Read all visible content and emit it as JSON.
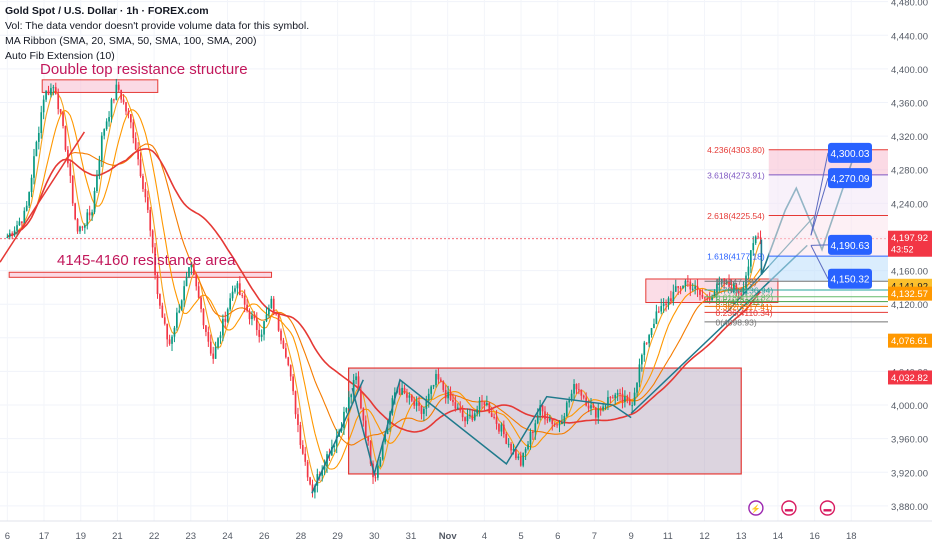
{
  "header": {
    "title": "Gold Spot / U.S. Dollar · 1h · FOREX.com",
    "vol_note": "Vol: The data vendor doesn't provide volume data for this symbol.",
    "ma_ribbon": "MA Ribbon (SMA, 20, SMA, 50, SMA, 100, SMA, 200)",
    "auto_fib": "Auto Fib Extension (10)"
  },
  "colors": {
    "candle_up": "#089981",
    "candle_down": "#f23645",
    "ma20": "#f7a21b",
    "ma50": "#ff9800",
    "ma100": "#f57c00",
    "ma200": "#e53935",
    "box_fill": "#b2a0b8",
    "projection": "#1f7a8c",
    "label_blue": "#2962ff",
    "price_red": "#f23645",
    "price_orange": "#ff9800",
    "price_yellow": "#fbc02d"
  },
  "chart_data": {
    "type": "candlestick",
    "symbol": "Gold Spot / U.S. Dollar",
    "interval": "1h",
    "source": "FOREX.com",
    "y_axis": {
      "range": [
        3862,
        4482
      ],
      "ticks": [
        4480,
        4440,
        4400,
        4360,
        4320,
        4280,
        4240,
        4200,
        4160,
        4120,
        4080,
        4040,
        4000,
        3960,
        3920,
        3880
      ],
      "tick_labels": [
        "4,480.00",
        "4,440.00",
        "4,400.00",
        "4,360.00",
        "4,320.00",
        "4,280.00",
        "4,240.00",
        "4,200.00",
        "4,160.00",
        "4,120.00",
        "4,080.00",
        "4,040.00",
        "4,000.00",
        "3,960.00",
        "3,920.00",
        "3,880.00"
      ]
    },
    "x_axis": {
      "tick_labels": [
        "6",
        "17",
        "19",
        "21",
        "22",
        "23",
        "24",
        "26",
        "28",
        "29",
        "30",
        "31",
        "Nov",
        "4",
        "5",
        "6",
        "7",
        "9",
        "11",
        "12",
        "13",
        "14",
        "16",
        "18"
      ],
      "visible_range": [
        -0.2,
        24
      ]
    },
    "price_path": [
      [
        0.0,
        4200
      ],
      [
        0.5,
        4228
      ],
      [
        1.0,
        4370
      ],
      [
        1.3,
        4380
      ],
      [
        1.6,
        4305
      ],
      [
        1.9,
        4205
      ],
      [
        2.3,
        4230
      ],
      [
        2.6,
        4325
      ],
      [
        3.0,
        4380
      ],
      [
        3.4,
        4330
      ],
      [
        3.8,
        4240
      ],
      [
        4.1,
        4130
      ],
      [
        4.4,
        4070
      ],
      [
        4.7,
        4120
      ],
      [
        5.0,
        4165
      ],
      [
        5.3,
        4110
      ],
      [
        5.6,
        4055
      ],
      [
        5.9,
        4100
      ],
      [
        6.2,
        4145
      ],
      [
        6.5,
        4115
      ],
      [
        6.9,
        4085
      ],
      [
        7.2,
        4122
      ],
      [
        7.6,
        4062
      ],
      [
        8.0,
        3955
      ],
      [
        8.3,
        3898
      ],
      [
        8.6,
        3930
      ],
      [
        9.0,
        3965
      ],
      [
        9.5,
        4032
      ],
      [
        10.0,
        3912
      ],
      [
        10.6,
        4022
      ],
      [
        11.3,
        3990
      ],
      [
        11.7,
        4032
      ],
      [
        12.0,
        4010
      ],
      [
        12.5,
        3980
      ],
      [
        13.0,
        4005
      ],
      [
        13.6,
        3960
      ],
      [
        14.0,
        3930
      ],
      [
        14.5,
        3995
      ],
      [
        15.0,
        3975
      ],
      [
        15.5,
        4025
      ],
      [
        16.0,
        3990
      ],
      [
        16.5,
        4012
      ],
      [
        17.0,
        4000
      ],
      [
        17.3,
        4060
      ],
      [
        17.6,
        4100
      ],
      [
        18.0,
        4125
      ],
      [
        18.5,
        4148
      ],
      [
        19.0,
        4125
      ],
      [
        19.5,
        4145
      ],
      [
        20.0,
        4135
      ],
      [
        20.4,
        4200
      ],
      [
        20.55,
        4197.92
      ]
    ],
    "moving_averages": [
      {
        "name": "SMA 20",
        "period": 20
      },
      {
        "name": "SMA 50",
        "period": 50
      },
      {
        "name": "SMA 100",
        "period": 100
      },
      {
        "name": "SMA 200",
        "period": 200
      }
    ],
    "annotations": {
      "double_top": {
        "label": "Double top resistance structure",
        "x1": 0.95,
        "x2": 4.1,
        "y1": 4372,
        "y2": 4387
      },
      "resistance_area": {
        "label": "4145-4160 resistance area",
        "x1": 0.05,
        "x2": 7.2,
        "y1": 4152,
        "y2": 4158
      },
      "range_box": {
        "x1": 9.3,
        "x2": 20.0,
        "y1": 3918,
        "y2": 4044
      },
      "consolidation_box": {
        "x1": 17.4,
        "x2": 21.0,
        "y1": 4122,
        "y2": 4150
      },
      "fib_levels": [
        {
          "ratio": "4.236",
          "price": 4303.8,
          "label": "4.236(4303.80)"
        },
        {
          "ratio": "3.618",
          "price": 4273.91,
          "label": "3.618(4273.91)"
        },
        {
          "ratio": "2.618",
          "price": 4225.54,
          "label": "2.618(4225.54)"
        },
        {
          "ratio": "1.618",
          "price": 4177.18,
          "label": "1.618(4177.18)"
        },
        {
          "ratio": "1",
          "price": 4147.29,
          "label": "1(4147.29)"
        },
        {
          "ratio": "0.786",
          "price": 4136.94,
          "label": "0.786(4136.94)"
        },
        {
          "ratio": "0.618",
          "price": 4128.82,
          "label": "0.618(4128.82)"
        },
        {
          "ratio": "0.5",
          "price": 4123.11,
          "label": "0.5(4123.11)"
        },
        {
          "ratio": "0.382",
          "price": 4117.41,
          "label": "0.382(4117.41)"
        },
        {
          "ratio": "0.236",
          "price": 4110.34,
          "label": "0.236(4110.34)"
        },
        {
          "ratio": "0",
          "price": 4098.93,
          "label": "0(4098.93)"
        }
      ],
      "targets": [
        {
          "label": "4,300.03",
          "price": 4300.03
        },
        {
          "label": "4,270.09",
          "price": 4270.09
        },
        {
          "label": "4,190.63",
          "price": 4190.63
        },
        {
          "label": "4,150.32",
          "price": 4150.32
        }
      ],
      "projection_path": [
        [
          20.55,
          4197
        ],
        [
          20.55,
          4155
        ],
        [
          21.2,
          4232
        ],
        [
          21.5,
          4258
        ],
        [
          22.2,
          4185
        ],
        [
          23.1,
          4300
        ]
      ],
      "price_tags": [
        {
          "label": "4,197.92",
          "sub": "43:52",
          "price": 4197.92,
          "style": "red"
        },
        {
          "label": "4,141.92",
          "price": 4141.92,
          "style": "yellow"
        },
        {
          "label": "4,132.57",
          "price": 4132.57,
          "style": "orange"
        },
        {
          "label": "4,076.61",
          "price": 4076.61,
          "style": "orange"
        },
        {
          "label": "4,032.82",
          "price": 4032.82,
          "style": "red"
        }
      ]
    }
  }
}
